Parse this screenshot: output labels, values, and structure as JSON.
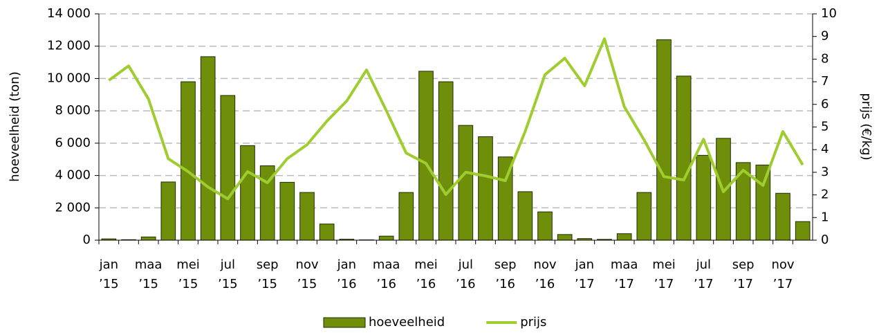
{
  "chart_data": {
    "type": "bar",
    "ylabel": "hoeveelheid (ton)",
    "y2label": "prijs (€/kg)",
    "categories": [
      "jan ’15",
      null,
      "maa ’15",
      null,
      "mei ’15",
      null,
      "jul ’15",
      null,
      "sep ’15",
      null,
      "nov ’15",
      null,
      "jan ’16",
      null,
      "maa ’16",
      null,
      "mei ’16",
      null,
      "jul ’16",
      null,
      "sep ’16",
      null,
      "nov ’16",
      null,
      "jan ’17",
      null,
      "maa ’17",
      null,
      "mei ’17",
      null,
      "jul ’17",
      null,
      "sep ’17",
      null,
      "nov ’17",
      null
    ],
    "series": [
      {
        "name": "hoeveelheid",
        "type": "bar",
        "color": "#6f8f0b",
        "values": [
          80,
          30,
          200,
          3600,
          9800,
          11350,
          8950,
          5850,
          4600,
          3580,
          2950,
          1000,
          60,
          20,
          250,
          2950,
          10450,
          9800,
          7100,
          6400,
          5150,
          3000,
          1750,
          350,
          100,
          50,
          400,
          2950,
          12400,
          10150,
          5250,
          6300,
          4800,
          4650,
          2900,
          1150
        ]
      },
      {
        "name": "prijs",
        "type": "line",
        "axis": "y2",
        "color": "#9fcc2e",
        "values": [
          7.06,
          7.7,
          6.24,
          3.6,
          3.03,
          2.35,
          1.83,
          3.03,
          2.54,
          3.6,
          4.22,
          5.26,
          6.15,
          7.52,
          5.72,
          3.85,
          3.39,
          2.02,
          3.0,
          2.84,
          2.63,
          4.8,
          7.31,
          8.04,
          6.82,
          8.9,
          5.9,
          4.43,
          2.81,
          2.66,
          4.46,
          2.14,
          3.09,
          2.42,
          4.8,
          3.33
        ]
      }
    ],
    "ylim": [
      0,
      14000
    ],
    "yticks": [
      0,
      {
        "value": 2000,
        "label": "2 000"
      },
      {
        "value": 4000,
        "label": "4 000"
      },
      {
        "value": 6000,
        "label": "6 000"
      },
      {
        "value": 8000,
        "label": "8 000"
      },
      {
        "value": 10000,
        "label": "10 000"
      },
      {
        "value": 12000,
        "label": "12 000"
      },
      {
        "value": 14000,
        "label": "14 000"
      }
    ],
    "y2lim": [
      0,
      10
    ],
    "y2ticks": [
      0,
      1,
      2,
      3,
      4,
      5,
      6,
      7,
      8,
      9,
      10
    ],
    "grid": true,
    "legend": "bottom"
  }
}
